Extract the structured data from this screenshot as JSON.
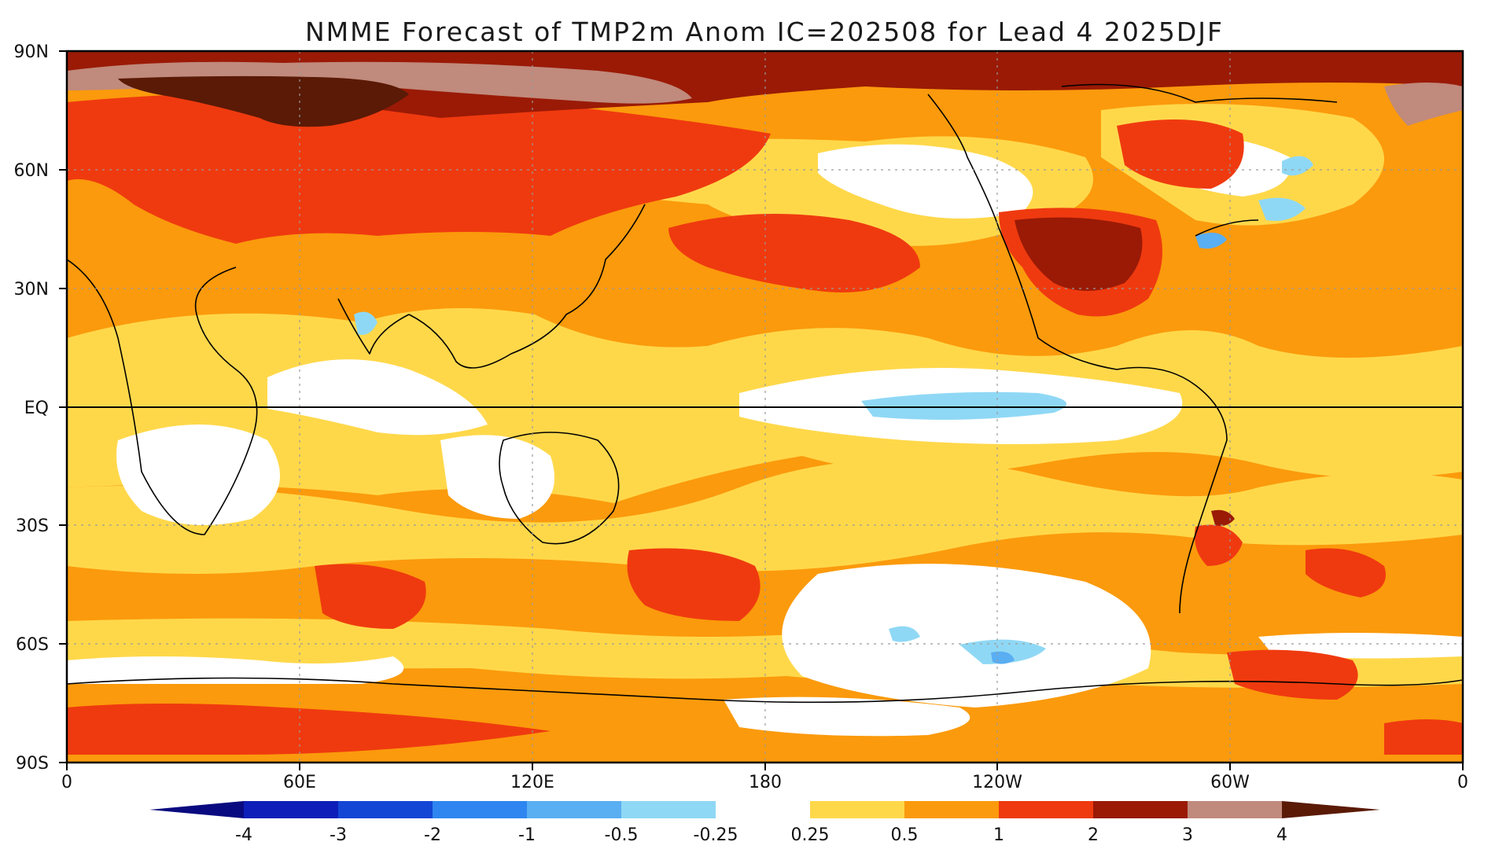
{
  "title": "NMME Forecast of TMP2m Anom IC=202508 for Lead 4 2025DJF",
  "axes": {
    "lat_labels": [
      "90N",
      "60N",
      "30N",
      "EQ",
      "30S",
      "60S",
      "90S"
    ],
    "lon_labels": [
      "0",
      "60E",
      "120E",
      "180",
      "120W",
      "60W",
      "0"
    ]
  },
  "legend": {
    "labels": [
      "-4",
      "-3",
      "-2",
      "-1",
      "-0.5",
      "-0.25",
      "0.25",
      "0.5",
      "1",
      "2",
      "3",
      "4"
    ],
    "colors": {
      "lt_neg4": "#0a0a80",
      "neg4_neg3": "#0d1fb8",
      "neg3_neg2": "#1446d6",
      "neg2_neg1": "#2f86f0",
      "neg1_neg05": "#5aaef2",
      "neg05_neg025": "#8fd8f5",
      "neutral": "#ffffff",
      "p025_p05": "#ffd84a",
      "p05_p1": "#fb9a0c",
      "p1_p2": "#ef3a0f",
      "p2_p3": "#9a1a06",
      "p3_p4": "#c08a7c",
      "gt_p4": "#5a1a06"
    }
  }
}
